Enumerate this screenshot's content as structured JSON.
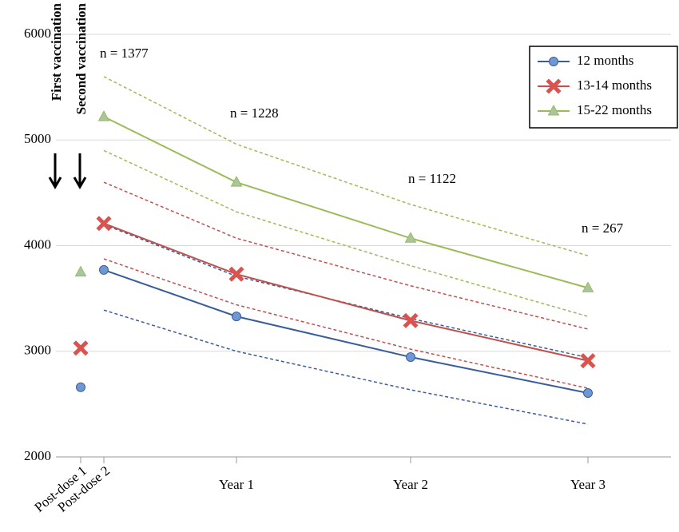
{
  "chart_data": {
    "type": "line",
    "categories": [
      "Post-dose 1",
      "Post-dose 2",
      "Year 1",
      "Year 2",
      "Year 3"
    ],
    "series": [
      {
        "name": "12 months",
        "color": "#3a5c9c",
        "marker_color": "#6f97d4",
        "marker": "circle",
        "values": [
          2660,
          3770,
          3330,
          2945,
          2605
        ],
        "ci_upper": [
          null,
          4200,
          3710,
          3310,
          2940
        ],
        "ci_lower": [
          null,
          3390,
          3000,
          2635,
          2310
        ]
      },
      {
        "name": "13-14 months",
        "color": "#c0504d",
        "marker_color": "#d9534f",
        "marker": "x",
        "values": [
          3030,
          4210,
          3730,
          3290,
          2910
        ],
        "ci_upper": [
          null,
          4600,
          4070,
          3620,
          3210
        ],
        "ci_lower": [
          null,
          3875,
          3440,
          3020,
          2650
        ]
      },
      {
        "name": "15-22 months",
        "color": "#9bbb59",
        "marker_color": "#a9c4a0",
        "marker": "triangle",
        "values": [
          3750,
          5220,
          4600,
          4070,
          3600
        ],
        "ci_upper": [
          null,
          5600,
          4960,
          4390,
          3905
        ],
        "ci_lower": [
          null,
          4900,
          4320,
          3810,
          3330
        ]
      }
    ],
    "ylim": [
      2000,
      6000
    ],
    "yticks": [
      2000,
      3000,
      4000,
      5000,
      6000
    ],
    "grid": true,
    "legend": "top-right",
    "annotations": [
      "n = 1377",
      "n = 1228",
      "n = 1122",
      "n = 267"
    ],
    "vertical_labels": [
      "First vaccination",
      "Second vaccination"
    ]
  }
}
